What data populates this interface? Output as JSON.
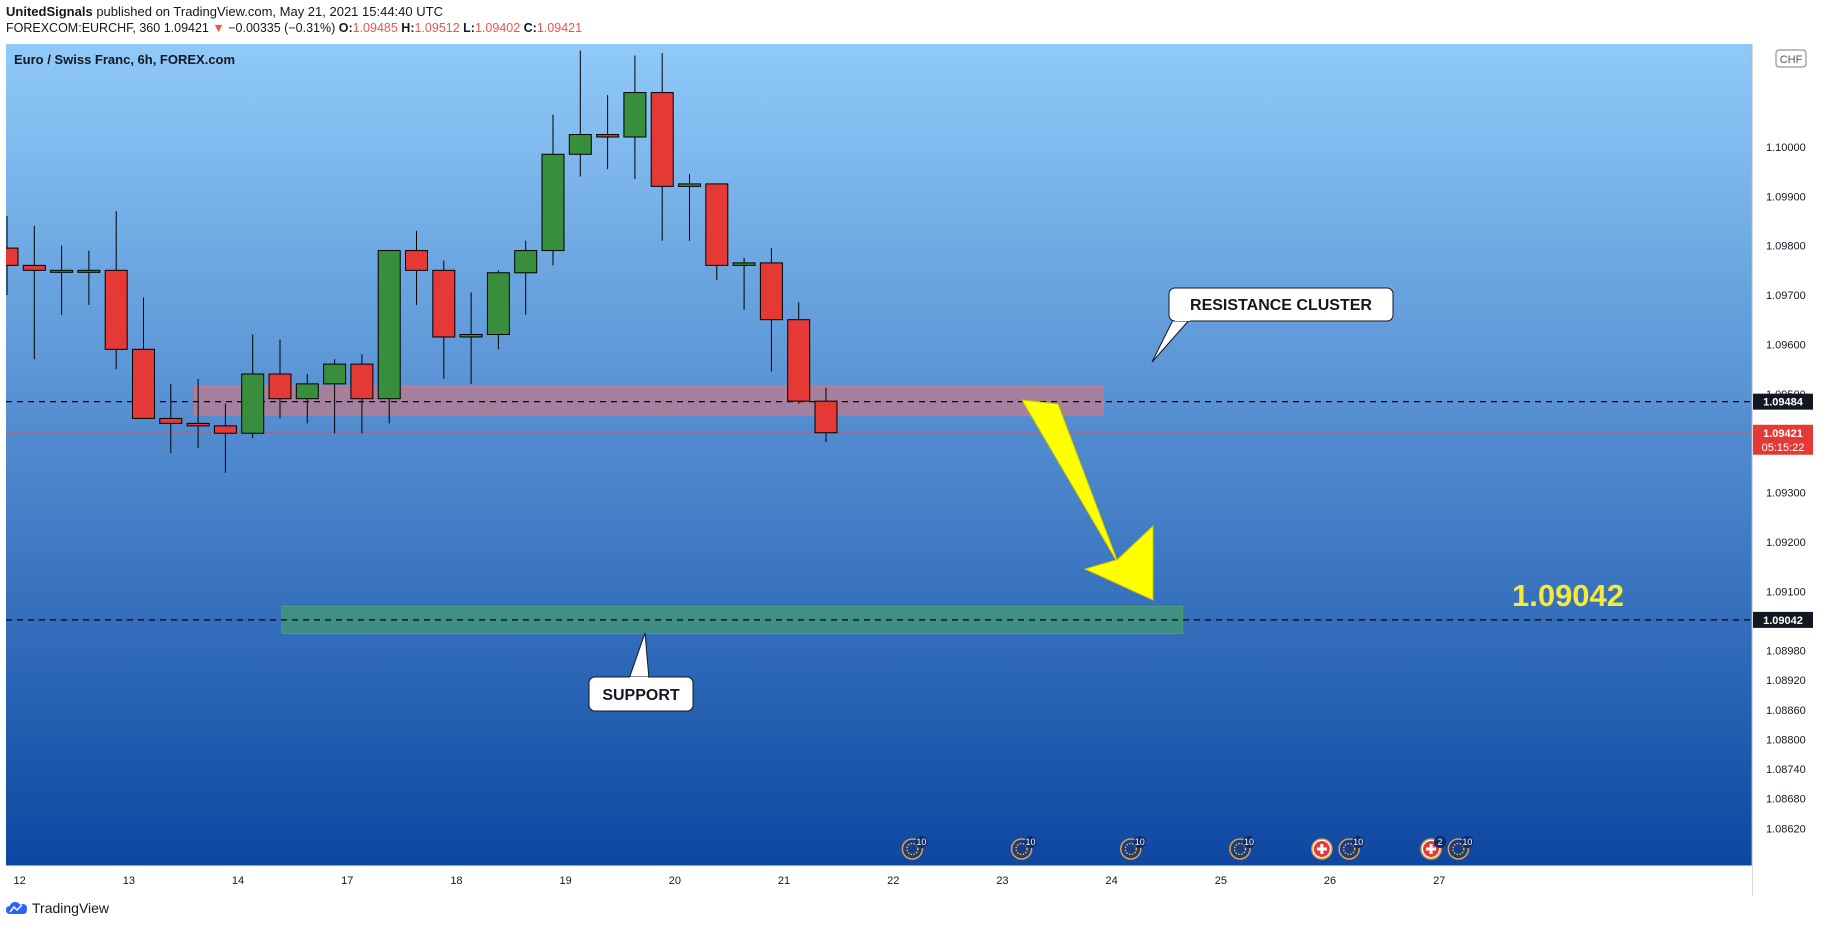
{
  "header": {
    "author": "UnitedSignals",
    "published": "published on TradingView.com, May 21, 2021 15:44:40 UTC",
    "symbol": "FOREXCOM:EURCHF, 360",
    "last": "1.09421",
    "change": "−0.00335 (−0.31%)",
    "o_label": "O:",
    "o": "1.09485",
    "h_label": "H:",
    "h": "1.09512",
    "l_label": "L:",
    "l": "1.09402",
    "c_label": "C:",
    "c": "1.09421"
  },
  "chart_data": {
    "type": "candlestick",
    "title": "Euro / Swiss Franc, 6h, FOREX.com",
    "currency": "CHF",
    "ylim": [
      1.0858,
      1.1018
    ],
    "y_ticks": [
      "1.10000",
      "1.09900",
      "1.09800",
      "1.09700",
      "1.09600",
      "1.09500",
      "1.09300",
      "1.09200",
      "1.09100",
      "1.08980",
      "1.08920",
      "1.08860",
      "1.08800",
      "1.08740",
      "1.08680",
      "1.08620"
    ],
    "y_tick_values": [
      1.1,
      1.099,
      1.098,
      1.097,
      1.096,
      1.095,
      1.093,
      1.092,
      1.091,
      1.0898,
      1.0892,
      1.0886,
      1.088,
      1.0874,
      1.0868,
      1.0862
    ],
    "x_ticks": [
      "12",
      "13",
      "14",
      "17",
      "18",
      "19",
      "20",
      "21",
      "22",
      "23",
      "24",
      "25",
      "26",
      "27"
    ],
    "x_tick_index": [
      0.5,
      4.5,
      8.5,
      12.5,
      16.5,
      20.5,
      24.5,
      28.5,
      32.5,
      36.5,
      40.5,
      44.5,
      48.5,
      52.5
    ],
    "candles": [
      {
        "o": 1.09795,
        "h": 1.0986,
        "l": 1.097,
        "c": 1.0976
      },
      {
        "o": 1.0976,
        "h": 1.0984,
        "l": 1.0957,
        "c": 1.0975
      },
      {
        "o": 1.0975,
        "h": 1.098,
        "l": 1.0966,
        "c": 1.0975
      },
      {
        "o": 1.0975,
        "h": 1.0979,
        "l": 1.0968,
        "c": 1.0975
      },
      {
        "o": 1.0975,
        "h": 1.0987,
        "l": 1.0955,
        "c": 1.0959
      },
      {
        "o": 1.0959,
        "h": 1.09695,
        "l": 1.0945,
        "c": 1.0945
      },
      {
        "o": 1.0945,
        "h": 1.0952,
        "l": 1.0938,
        "c": 1.0944
      },
      {
        "o": 1.0944,
        "h": 1.0953,
        "l": 1.0939,
        "c": 1.09435
      },
      {
        "o": 1.09435,
        "h": 1.0948,
        "l": 1.0934,
        "c": 1.0942
      },
      {
        "o": 1.0942,
        "h": 1.0962,
        "l": 1.0941,
        "c": 1.0954
      },
      {
        "o": 1.0954,
        "h": 1.0961,
        "l": 1.0945,
        "c": 1.0949
      },
      {
        "o": 1.0949,
        "h": 1.0954,
        "l": 1.0944,
        "c": 1.0952
      },
      {
        "o": 1.0952,
        "h": 1.0957,
        "l": 1.0942,
        "c": 1.0956
      },
      {
        "o": 1.0956,
        "h": 1.0958,
        "l": 1.0942,
        "c": 1.0949
      },
      {
        "o": 1.0949,
        "h": 1.0979,
        "l": 1.0944,
        "c": 1.0979
      },
      {
        "o": 1.0979,
        "h": 1.0983,
        "l": 1.0968,
        "c": 1.0975
      },
      {
        "o": 1.0975,
        "h": 1.0977,
        "l": 1.0953,
        "c": 1.09615
      },
      {
        "o": 1.09615,
        "h": 1.09705,
        "l": 1.0952,
        "c": 1.0962
      },
      {
        "o": 1.0962,
        "h": 1.0975,
        "l": 1.0959,
        "c": 1.09745
      },
      {
        "o": 1.09745,
        "h": 1.0981,
        "l": 1.0966,
        "c": 1.0979
      },
      {
        "o": 1.0979,
        "h": 1.10065,
        "l": 1.0976,
        "c": 1.09985
      },
      {
        "o": 1.09985,
        "h": 1.10195,
        "l": 1.0994,
        "c": 1.10025
      },
      {
        "o": 1.10025,
        "h": 1.10105,
        "l": 1.09955,
        "c": 1.1002
      },
      {
        "o": 1.1002,
        "h": 1.10185,
        "l": 1.09935,
        "c": 1.1011
      },
      {
        "o": 1.1011,
        "h": 1.1019,
        "l": 1.0981,
        "c": 1.0992
      },
      {
        "o": 1.0992,
        "h": 1.09945,
        "l": 1.0981,
        "c": 1.09925
      },
      {
        "o": 1.09925,
        "h": 1.09925,
        "l": 1.0973,
        "c": 1.0976
      },
      {
        "o": 1.0976,
        "h": 1.09775,
        "l": 1.0967,
        "c": 1.09765
      },
      {
        "o": 1.09765,
        "h": 1.09795,
        "l": 1.09545,
        "c": 1.0965
      },
      {
        "o": 1.0965,
        "h": 1.09685,
        "l": 1.0948,
        "c": 1.09485
      },
      {
        "o": 1.09485,
        "h": 1.09512,
        "l": 1.09402,
        "c": 1.09421
      }
    ],
    "resistance_level": "1.09484",
    "support_level": "1.09042",
    "current_price": "1.09421",
    "countdown": "05:15:22",
    "annotations": {
      "resistance": "RESISTANCE CLUSTER",
      "support": "SUPPORT",
      "target": "1.09042"
    },
    "events": [
      {
        "x": 33.2,
        "kind": "eu",
        "count": "10"
      },
      {
        "x": 37.2,
        "kind": "eu",
        "count": "10"
      },
      {
        "x": 41.2,
        "kind": "eu",
        "count": "10"
      },
      {
        "x": 45.2,
        "kind": "eu",
        "count": "10"
      },
      {
        "x": 48.2,
        "kind": "ch",
        "count": ""
      },
      {
        "x": 49.2,
        "kind": "eu",
        "count": "10"
      },
      {
        "x": 52.2,
        "kind": "ch",
        "count": "2"
      },
      {
        "x": 53.2,
        "kind": "eu",
        "count": "10"
      }
    ],
    "colors": {
      "up": "#388e3c",
      "down": "#e53935",
      "bg_top": "#90caf9",
      "bg_bottom": "#0d47a1",
      "resistance_zone": "#e57373",
      "support_zone": "#4caf50",
      "arrow": "#ffff00",
      "target_text": "#f5e93a"
    }
  },
  "footer": {
    "brand": "TradingView"
  }
}
